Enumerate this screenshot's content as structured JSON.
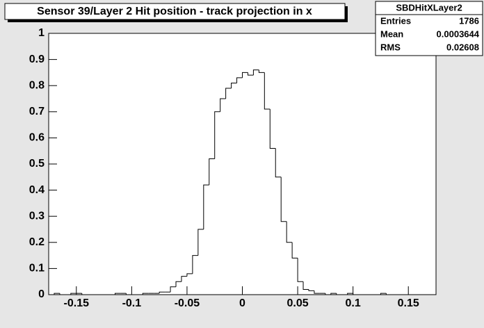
{
  "chart_data": {
    "type": "histogram",
    "title": "Sensor 39/Layer 2 Hit position - track projection in x",
    "bins": [
      -0.175,
      -0.17,
      -0.165,
      -0.16,
      -0.155,
      -0.15,
      -0.145,
      -0.14,
      -0.135,
      -0.13,
      -0.125,
      -0.12,
      -0.115,
      -0.11,
      -0.105,
      -0.1,
      -0.095,
      -0.09,
      -0.085,
      -0.08,
      -0.075,
      -0.07,
      -0.065,
      -0.06,
      -0.055,
      -0.05,
      -0.045,
      -0.04,
      -0.035,
      -0.03,
      -0.025,
      -0.02,
      -0.015,
      -0.01,
      -0.005,
      0,
      0.005,
      0.01,
      0.015,
      0.02,
      0.025,
      0.03,
      0.035,
      0.04,
      0.045,
      0.05,
      0.055,
      0.06,
      0.065,
      0.07,
      0.075,
      0.08,
      0.085,
      0.09,
      0.095,
      0.1,
      0.105,
      0.11,
      0.115,
      0.12,
      0.125,
      0.13,
      0.135,
      0.14,
      0.145,
      0.15,
      0.155,
      0.16,
      0.165,
      0.17,
      0.175
    ],
    "values": [
      0,
      0.005,
      0,
      0,
      0.005,
      0.005,
      0,
      0,
      0,
      0,
      0,
      0,
      0.005,
      0.005,
      0,
      0,
      0,
      0.005,
      0.005,
      0.005,
      0.01,
      0.01,
      0.03,
      0.05,
      0.07,
      0.08,
      0.15,
      0.25,
      0.42,
      0.52,
      0.7,
      0.75,
      0.79,
      0.81,
      0.83,
      0.85,
      0.84,
      0.86,
      0.85,
      0.71,
      0.56,
      0.45,
      0.28,
      0.2,
      0.14,
      0.05,
      0.02,
      0.015,
      0.005,
      0.005,
      0,
      0.005,
      0,
      0,
      0.005,
      0,
      0,
      0,
      0,
      0,
      0.005,
      0,
      0,
      0,
      0,
      0,
      0,
      0,
      0,
      0,
      0
    ],
    "color": "#000000",
    "xlim": [
      -0.175,
      0.175
    ],
    "xticks": [
      -0.15,
      -0.1,
      -0.05,
      0,
      0.05,
      0.1,
      0.15
    ],
    "ylim": [
      0,
      1
    ],
    "yticks": [
      0,
      0.1,
      0.2,
      0.3,
      0.4,
      0.5,
      0.6,
      0.7,
      0.8,
      0.9,
      1
    ],
    "stats": {
      "name": "SBDHitXLayer2",
      "rows": [
        {
          "label": "Entries",
          "value": 1786
        },
        {
          "label": "Mean",
          "value": 0.0003644
        },
        {
          "label": "RMS",
          "value": 0.02608
        }
      ]
    }
  }
}
